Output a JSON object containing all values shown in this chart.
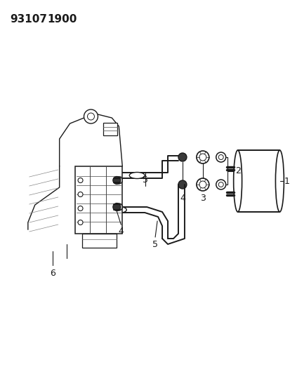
{
  "header1": "93107",
  "header2": "1900",
  "bg": "#ffffff",
  "lc": "#1a1a1a",
  "fig_w": 4.14,
  "fig_h": 5.33,
  "dpi": 100
}
